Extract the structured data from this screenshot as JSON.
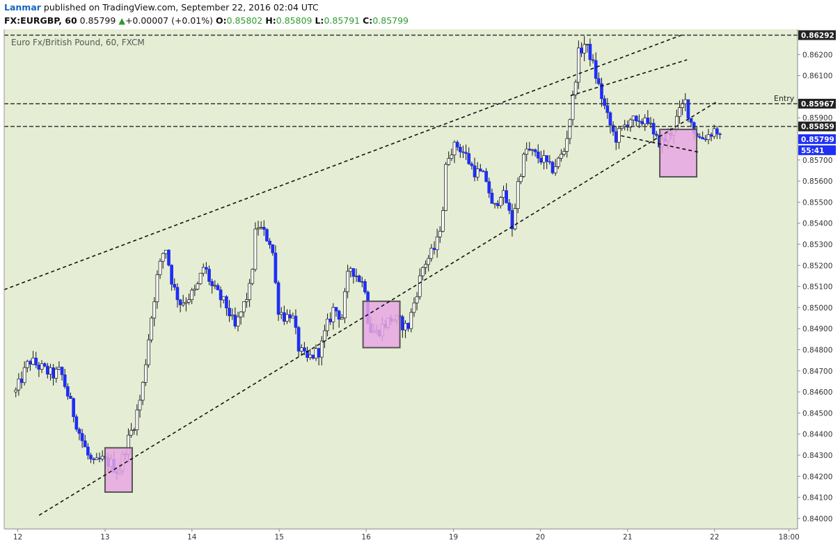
{
  "header": {
    "author": "Lanmar",
    "publish_text": "published on TradingView.com, September 22, 2016 02:04 UTC",
    "symbol": "FX:EURGBP, 60",
    "last": "0.85799",
    "change_arrow": "▲",
    "change": "+0.00007 (+0.01%)",
    "o_label": "O:",
    "o_value": "0.85802",
    "h_label": "H:",
    "h_value": "0.85809",
    "l_label": "L:",
    "l_value": "0.85791",
    "c_label": "C:",
    "c_value": "0.85799"
  },
  "colors": {
    "plot_bg": "#e5eed4",
    "bearish": "#1f2ff5",
    "bullish": "#ffffff",
    "wick": "#111111",
    "box_fill": "#e8a6e3",
    "box_stroke": "#555555",
    "price_tag_bg": "#1f2ff5",
    "level_tag_bg": "#222222"
  },
  "chart_data": {
    "type": "candlestick",
    "title": "Euro Fx/British Pound, 60, FXCM",
    "ylim": [
      0.8395,
      0.8632
    ],
    "y_ticks": [
      "0.84000",
      "0.84100",
      "0.84200",
      "0.84300",
      "0.84400",
      "0.84500",
      "0.84600",
      "0.84700",
      "0.84800",
      "0.84900",
      "0.85000",
      "0.85100",
      "0.85200",
      "0.85300",
      "0.85400",
      "0.85500",
      "0.85600",
      "0.85700",
      "0.85900",
      "0.86100",
      "0.86200"
    ],
    "x_labels": [
      {
        "label": "12",
        "t": 0.05
      },
      {
        "label": "13",
        "t": 2.3
      },
      {
        "label": "14",
        "t": 4.54
      },
      {
        "label": "15",
        "t": 6.79
      },
      {
        "label": "16",
        "t": 9.03
      },
      {
        "label": "19",
        "t": 11.28
      },
      {
        "label": "20",
        "t": 13.52
      },
      {
        "label": "21",
        "t": 15.77
      },
      {
        "label": "22",
        "t": 18.01
      },
      {
        "label": "18:00",
        "t": 19.93
      }
    ],
    "x_range": [
      -0.3,
      20.15
    ],
    "path": [
      [
        0.0,
        0.846
      ],
      [
        0.35,
        0.8475
      ],
      [
        0.6,
        0.8472
      ],
      [
        0.95,
        0.8468
      ],
      [
        1.15,
        0.847
      ],
      [
        1.4,
        0.8455
      ],
      [
        1.65,
        0.844
      ],
      [
        1.85,
        0.843
      ],
      [
        2.0,
        0.8425
      ],
      [
        2.2,
        0.8428
      ],
      [
        2.45,
        0.8426
      ],
      [
        2.65,
        0.8422
      ],
      [
        2.85,
        0.8435
      ],
      [
        3.05,
        0.8445
      ],
      [
        3.25,
        0.846
      ],
      [
        3.45,
        0.849
      ],
      [
        3.65,
        0.8515
      ],
      [
        3.85,
        0.853
      ],
      [
        4.05,
        0.851
      ],
      [
        4.25,
        0.8502
      ],
      [
        4.45,
        0.8505
      ],
      [
        4.65,
        0.8508
      ],
      [
        4.85,
        0.852
      ],
      [
        5.05,
        0.851
      ],
      [
        5.25,
        0.8505
      ],
      [
        5.45,
        0.85
      ],
      [
        5.65,
        0.849
      ],
      [
        5.85,
        0.85
      ],
      [
        6.05,
        0.851
      ],
      [
        6.2,
        0.854
      ],
      [
        6.4,
        0.8535
      ],
      [
        6.6,
        0.853
      ],
      [
        6.75,
        0.85
      ],
      [
        6.95,
        0.8495
      ],
      [
        7.1,
        0.8498
      ],
      [
        7.3,
        0.848
      ],
      [
        7.5,
        0.8475
      ],
      [
        7.7,
        0.8478
      ],
      [
        7.85,
        0.848
      ],
      [
        8.0,
        0.849
      ],
      [
        8.2,
        0.85
      ],
      [
        8.4,
        0.8495
      ],
      [
        8.6,
        0.852
      ],
      [
        8.8,
        0.8515
      ],
      [
        9.0,
        0.851
      ],
      [
        9.1,
        0.849
      ],
      [
        9.3,
        0.8488
      ],
      [
        9.5,
        0.8492
      ],
      [
        9.7,
        0.8495
      ],
      [
        9.9,
        0.8493
      ],
      [
        10.1,
        0.849
      ],
      [
        10.3,
        0.8505
      ],
      [
        10.5,
        0.852
      ],
      [
        10.7,
        0.8525
      ],
      [
        10.85,
        0.853
      ],
      [
        11.0,
        0.8545
      ],
      [
        11.1,
        0.857
      ],
      [
        11.2,
        0.8575
      ],
      [
        11.4,
        0.8577
      ],
      [
        11.6,
        0.8572
      ],
      [
        11.8,
        0.8565
      ],
      [
        12.0,
        0.8563
      ],
      [
        12.15,
        0.856
      ],
      [
        12.3,
        0.8545
      ],
      [
        12.5,
        0.8555
      ],
      [
        12.65,
        0.855
      ],
      [
        12.8,
        0.8538
      ],
      [
        12.95,
        0.856
      ],
      [
        13.15,
        0.8575
      ],
      [
        13.4,
        0.8572
      ],
      [
        13.6,
        0.857
      ],
      [
        13.8,
        0.8565
      ],
      [
        14.0,
        0.857
      ],
      [
        14.15,
        0.8575
      ],
      [
        14.35,
        0.8598
      ],
      [
        14.5,
        0.862
      ],
      [
        14.65,
        0.8625
      ],
      [
        14.8,
        0.862
      ],
      [
        14.95,
        0.861
      ],
      [
        15.1,
        0.86
      ],
      [
        15.25,
        0.859
      ],
      [
        15.45,
        0.858
      ],
      [
        15.65,
        0.8585
      ],
      [
        15.85,
        0.859
      ],
      [
        16.05,
        0.8585
      ],
      [
        16.25,
        0.8592
      ],
      [
        16.45,
        0.858
      ],
      [
        16.65,
        0.8578
      ],
      [
        16.85,
        0.8582
      ],
      [
        17.05,
        0.859
      ],
      [
        17.25,
        0.8598
      ],
      [
        17.45,
        0.8585
      ],
      [
        17.65,
        0.858
      ],
      [
        17.85,
        0.8582
      ],
      [
        18.05,
        0.8585
      ],
      [
        18.15,
        0.858
      ]
    ],
    "seed": 12345,
    "trendlines": [
      {
        "name": "upper-channel-line",
        "t1": -0.3,
        "p1": 0.85085,
        "t2": 17.2,
        "p2": 0.86295
      },
      {
        "name": "lower-channel-line",
        "t1": 0.6,
        "p1": 0.84015,
        "t2": 18.1,
        "p2": 0.8598
      },
      {
        "name": "inner-upper-line",
        "t1": 14.3,
        "p1": 0.86005,
        "t2": 17.3,
        "p2": 0.86175
      },
      {
        "name": "inner-lower-line",
        "t1": 15.6,
        "p1": 0.85815,
        "t2": 17.65,
        "p2": 0.85735
      }
    ],
    "levels": [
      {
        "name": "level-86292",
        "price": 0.86292,
        "label": "0.86292"
      },
      {
        "name": "level-entry",
        "price": 0.85967,
        "label": "0.85967",
        "note": "Entry"
      },
      {
        "name": "level-85859",
        "price": 0.85859,
        "label": "0.85859"
      }
    ],
    "boxes": [
      {
        "name": "box-13",
        "t1": 2.3,
        "t2": 3.0,
        "p1": 0.84125,
        "p2": 0.84335
      },
      {
        "name": "box-16",
        "t1": 8.95,
        "t2": 9.9,
        "p1": 0.8481,
        "p2": 0.8503
      },
      {
        "name": "box-21",
        "t1": 16.6,
        "t2": 17.55,
        "p1": 0.8562,
        "p2": 0.85845
      }
    ],
    "current_price": {
      "price": 0.85799,
      "label": "0.85799",
      "timer": "55:41"
    }
  }
}
